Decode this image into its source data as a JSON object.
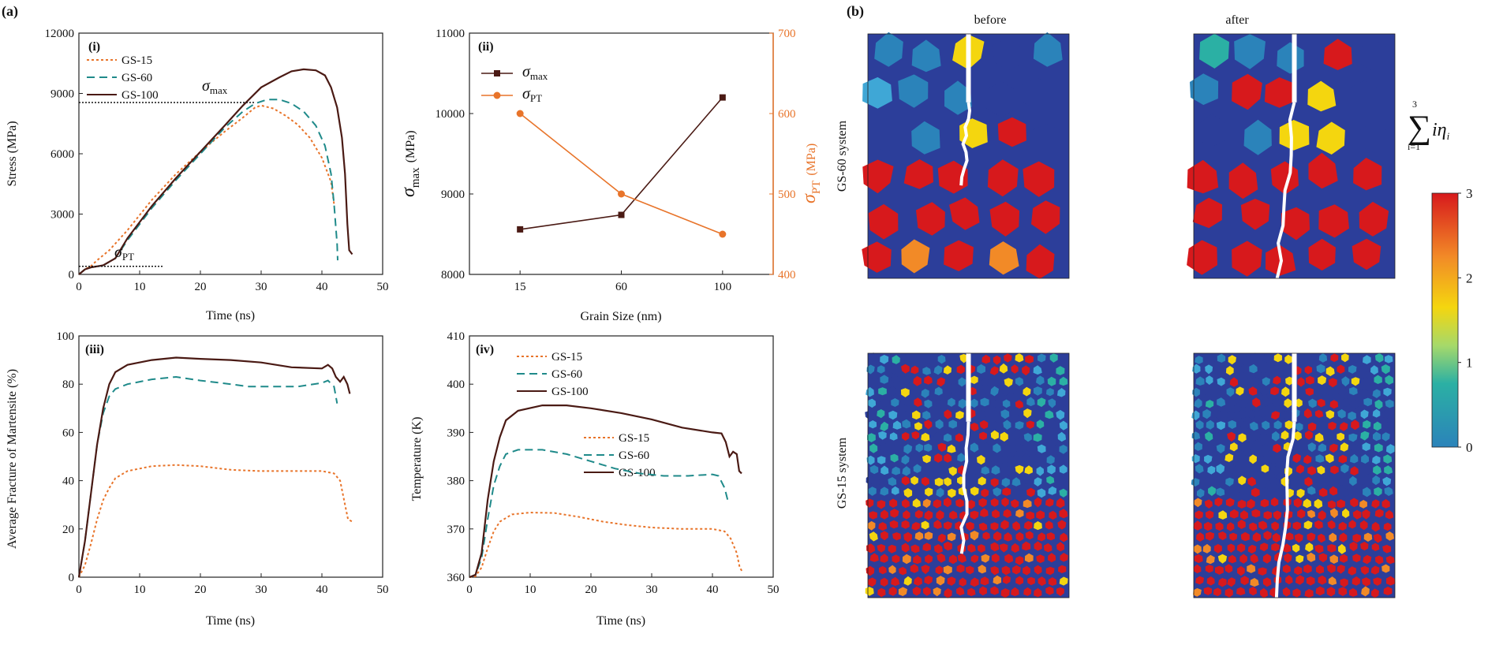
{
  "figure": {
    "panel_a_label": "(a)",
    "panel_b_label": "(b)",
    "sigma": "σ",
    "sub_max": "max",
    "sub_pt": "PT",
    "unit_mpa": "(MPa)"
  },
  "chart_data": [
    {
      "id": "i",
      "type": "line",
      "panel_label": "(i)",
      "xlabel": "Time (ns)",
      "ylabel": "Stress (MPa)",
      "xlim": [
        0,
        50
      ],
      "ylim": [
        0,
        12000
      ],
      "xticks": [
        "0",
        "10",
        "20",
        "30",
        "40",
        "50"
      ],
      "yticks": [
        "0",
        "3000",
        "6000",
        "9000",
        "12000"
      ],
      "annotations": {
        "sigma_max_level": 8550,
        "sigma_pt_level": 400
      },
      "series": [
        {
          "name": "GS-15",
          "color": "#e8742a",
          "dash": "dotted",
          "points": [
            [
              0,
              0
            ],
            [
              1,
              250
            ],
            [
              2,
              420
            ],
            [
              3,
              700
            ],
            [
              5,
              1200
            ],
            [
              8,
              2200
            ],
            [
              12,
              3700
            ],
            [
              16,
              5000
            ],
            [
              20,
              6100
            ],
            [
              24,
              7100
            ],
            [
              27,
              7800
            ],
            [
              29,
              8300
            ],
            [
              30,
              8400
            ],
            [
              32,
              8250
            ],
            [
              34,
              7900
            ],
            [
              36,
              7450
            ],
            [
              38,
              6800
            ],
            [
              40,
              5800
            ],
            [
              41.5,
              4600
            ],
            [
              42,
              3500
            ]
          ]
        },
        {
          "name": "GS-60",
          "color": "#1f8a8a",
          "dash": "dashed",
          "points": [
            [
              0,
              0
            ],
            [
              1,
              250
            ],
            [
              2,
              350
            ],
            [
              4,
              450
            ],
            [
              6,
              800
            ],
            [
              8,
              1700
            ],
            [
              12,
              3300
            ],
            [
              16,
              4700
            ],
            [
              20,
              6000
            ],
            [
              24,
              7300
            ],
            [
              27,
              8100
            ],
            [
              29,
              8500
            ],
            [
              31,
              8700
            ],
            [
              33,
              8700
            ],
            [
              35,
              8500
            ],
            [
              37,
              8100
            ],
            [
              39,
              7400
            ],
            [
              40.5,
              6400
            ],
            [
              41.5,
              5000
            ],
            [
              42,
              3500
            ],
            [
              42.5,
              1500
            ],
            [
              42.6,
              700
            ]
          ]
        },
        {
          "name": "GS-100",
          "color": "#4a1a14",
          "dash": "solid",
          "points": [
            [
              0,
              0
            ],
            [
              1,
              250
            ],
            [
              2,
              350
            ],
            [
              4,
              450
            ],
            [
              6,
              800
            ],
            [
              8,
              1800
            ],
            [
              12,
              3400
            ],
            [
              16,
              4800
            ],
            [
              20,
              6100
            ],
            [
              24,
              7400
            ],
            [
              27,
              8400
            ],
            [
              30,
              9300
            ],
            [
              33,
              9800
            ],
            [
              35,
              10100
            ],
            [
              37,
              10200
            ],
            [
              39,
              10150
            ],
            [
              40.5,
              9900
            ],
            [
              41.5,
              9300
            ],
            [
              42.5,
              8300
            ],
            [
              43.3,
              6800
            ],
            [
              43.8,
              5000
            ],
            [
              44.2,
              2500
            ],
            [
              44.5,
              1200
            ],
            [
              45,
              1000
            ]
          ]
        }
      ]
    },
    {
      "id": "ii",
      "type": "line",
      "panel_label": "(ii)",
      "xlabel": "Grain Size (nm)",
      "categories": [
        "15",
        "60",
        "100"
      ],
      "ylim": [
        8000,
        11000
      ],
      "yticks": [
        "8000",
        "9000",
        "10000",
        "11000"
      ],
      "y2lim": [
        400,
        700
      ],
      "y2ticks": [
        "400",
        "500",
        "600",
        "700"
      ],
      "series": [
        {
          "name": "σmax",
          "color": "#4a1a14",
          "axis": "left",
          "values": [
            8560,
            8740,
            10200
          ]
        },
        {
          "name": "σPT",
          "color": "#e8742a",
          "axis": "right",
          "values": [
            600,
            500,
            450
          ]
        }
      ]
    },
    {
      "id": "iii",
      "type": "line",
      "panel_label": "(iii)",
      "xlabel": "Time (ns)",
      "ylabel": "Average Fracture of Martensite (%)",
      "xlim": [
        0,
        50
      ],
      "ylim": [
        0,
        100
      ],
      "xticks": [
        "0",
        "10",
        "20",
        "30",
        "40",
        "50"
      ],
      "yticks": [
        "0",
        "20",
        "40",
        "60",
        "80",
        "100"
      ],
      "series": [
        {
          "name": "GS-15",
          "color": "#e8742a",
          "dash": "dotted",
          "points": [
            [
              0,
              0
            ],
            [
              1,
              5
            ],
            [
              2,
              14
            ],
            [
              3,
              24
            ],
            [
              4,
              32
            ],
            [
              5,
              37
            ],
            [
              6,
              41
            ],
            [
              8,
              44
            ],
            [
              12,
              46
            ],
            [
              16,
              46.5
            ],
            [
              20,
              46
            ],
            [
              25,
              44.5
            ],
            [
              30,
              44
            ],
            [
              35,
              44
            ],
            [
              40,
              44
            ],
            [
              42,
              43
            ],
            [
              43,
              40
            ],
            [
              43.8,
              30
            ],
            [
              44.3,
              24
            ],
            [
              45,
              23
            ]
          ]
        },
        {
          "name": "GS-60",
          "color": "#1f8a8a",
          "dash": "dashed",
          "points": [
            [
              0,
              0
            ],
            [
              1,
              15
            ],
            [
              2,
              35
            ],
            [
              3,
              55
            ],
            [
              4,
              68
            ],
            [
              5,
              75
            ],
            [
              6,
              78
            ],
            [
              8,
              80
            ],
            [
              12,
              82
            ],
            [
              16,
              83
            ],
            [
              20,
              81.5
            ],
            [
              25,
              80
            ],
            [
              28,
              79
            ],
            [
              32,
              79
            ],
            [
              36,
              79
            ],
            [
              40,
              80.5
            ],
            [
              41,
              81.5
            ],
            [
              42,
              79
            ],
            [
              42.5,
              72
            ]
          ]
        },
        {
          "name": "GS-100",
          "color": "#4a1a14",
          "dash": "solid",
          "points": [
            [
              0,
              0
            ],
            [
              1,
              15
            ],
            [
              2,
              35
            ],
            [
              3,
              55
            ],
            [
              4,
              70
            ],
            [
              5,
              80
            ],
            [
              6,
              85
            ],
            [
              8,
              88
            ],
            [
              12,
              90
            ],
            [
              16,
              91
            ],
            [
              20,
              90.5
            ],
            [
              25,
              90
            ],
            [
              30,
              89
            ],
            [
              35,
              87
            ],
            [
              40,
              86.5
            ],
            [
              41,
              88
            ],
            [
              41.7,
              86.5
            ],
            [
              42.3,
              83
            ],
            [
              43,
              81
            ],
            [
              43.6,
              83
            ],
            [
              44.2,
              80
            ],
            [
              44.6,
              76
            ]
          ]
        }
      ]
    },
    {
      "id": "iv",
      "type": "line",
      "panel_label": "(iv)",
      "xlabel": "Time (ns)",
      "ylabel": "Temperature (K)",
      "xlim": [
        0,
        50
      ],
      "ylim": [
        360,
        410
      ],
      "xticks": [
        "0",
        "10",
        "20",
        "30",
        "40",
        "50"
      ],
      "yticks": [
        "360",
        "370",
        "380",
        "390",
        "400",
        "410"
      ],
      "series": [
        {
          "name": "GS-15",
          "color": "#e8742a",
          "dash": "dotted",
          "points": [
            [
              0,
              360
            ],
            [
              1,
              360.2
            ],
            [
              2,
              362
            ],
            [
              3,
              366
            ],
            [
              4,
              369.5
            ],
            [
              5,
              371.5
            ],
            [
              7,
              373
            ],
            [
              10,
              373.4
            ],
            [
              14,
              373.3
            ],
            [
              18,
              372.5
            ],
            [
              22,
              371.5
            ],
            [
              26,
              370.8
            ],
            [
              30,
              370.3
            ],
            [
              35,
              370
            ],
            [
              40,
              370
            ],
            [
              42,
              369.5
            ],
            [
              43,
              368
            ],
            [
              44,
              365
            ],
            [
              44.5,
              362
            ],
            [
              45,
              361
            ]
          ]
        },
        {
          "name": "GS-60",
          "color": "#1f8a8a",
          "dash": "dashed",
          "points": [
            [
              0,
              360
            ],
            [
              1,
              360.5
            ],
            [
              2,
              364
            ],
            [
              3,
              372
            ],
            [
              4,
              379
            ],
            [
              5,
              383
            ],
            [
              6,
              385.5
            ],
            [
              8,
              386.4
            ],
            [
              12,
              386.4
            ],
            [
              16,
              385.5
            ],
            [
              20,
              384
            ],
            [
              24,
              382.5
            ],
            [
              28,
              381.5
            ],
            [
              32,
              381
            ],
            [
              36,
              381
            ],
            [
              40,
              381.3
            ],
            [
              41,
              381
            ],
            [
              42,
              378.5
            ],
            [
              42.5,
              376
            ]
          ]
        },
        {
          "name": "GS-100",
          "color": "#4a1a14",
          "dash": "solid",
          "points": [
            [
              0,
              360
            ],
            [
              1,
              360.5
            ],
            [
              2,
              365
            ],
            [
              3,
              376
            ],
            [
              4,
              384
            ],
            [
              5,
              389
            ],
            [
              6,
              392.5
            ],
            [
              8,
              394.5
            ],
            [
              12,
              395.6
            ],
            [
              16,
              395.6
            ],
            [
              20,
              395
            ],
            [
              25,
              394
            ],
            [
              30,
              392.7
            ],
            [
              35,
              391
            ],
            [
              40,
              390
            ],
            [
              41.5,
              389.8
            ],
            [
              42.2,
              388
            ],
            [
              42.8,
              385
            ],
            [
              43.4,
              386
            ],
            [
              44,
              385.5
            ],
            [
              44.4,
              382
            ],
            [
              44.8,
              381.5
            ]
          ]
        }
      ]
    }
  ],
  "panel_b": {
    "col_before": "before",
    "col_after": "after",
    "row_gs60": "GS-60 system",
    "row_gs15": "GS-15 system",
    "colorbar": {
      "sum_symbol": "∑",
      "sum_lower": "i=1",
      "sum_upper": "3",
      "sum_term": "iη",
      "sum_term_sub": "i",
      "ticks": [
        "3",
        "2",
        "1",
        "0"
      ],
      "colors": [
        "#d7191c",
        "#f4d60f",
        "#2bb0a4",
        "#2b83ba"
      ]
    },
    "maps": [
      {
        "name": "gs60-before",
        "grains": 5,
        "crack_fraction": 0.62,
        "red_fraction": 0.55
      },
      {
        "name": "gs60-after",
        "grains": 5,
        "crack_fraction": 1.0,
        "red_fraction": 0.6
      },
      {
        "name": "gs15-before",
        "grains": 18,
        "crack_fraction": 0.82,
        "red_fraction": 0.45
      },
      {
        "name": "gs15-after",
        "grains": 18,
        "crack_fraction": 1.0,
        "red_fraction": 0.45
      }
    ]
  }
}
